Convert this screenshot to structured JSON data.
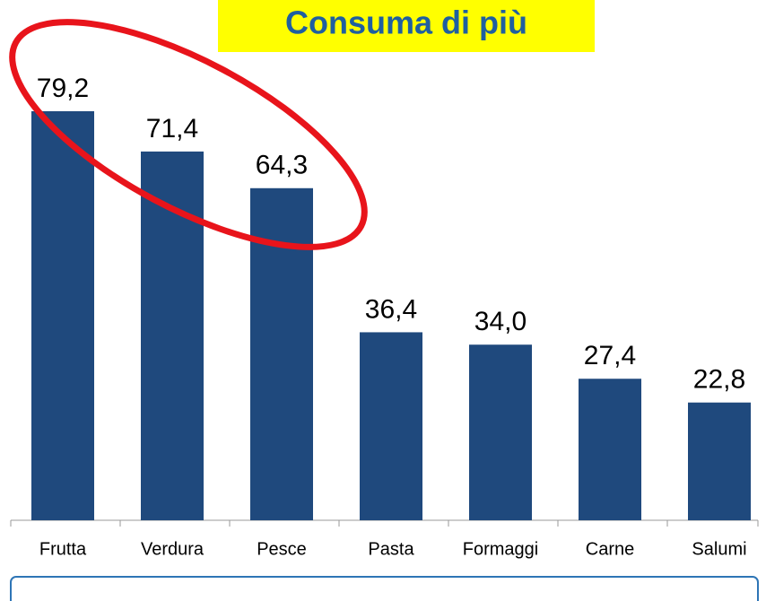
{
  "chart_data": {
    "type": "bar",
    "title": "Consuma di più",
    "categories": [
      "Frutta",
      "Verdura",
      "Pesce",
      "Pasta",
      "Formaggi",
      "Carne",
      "Salumi"
    ],
    "values": [
      79.2,
      71.4,
      64.3,
      36.4,
      34.0,
      27.4,
      22.8
    ],
    "value_labels": [
      "79,2",
      "71,4",
      "64,3",
      "36,4",
      "34,0",
      "27,4",
      "22,8"
    ],
    "color": "#1f497d"
  }
}
